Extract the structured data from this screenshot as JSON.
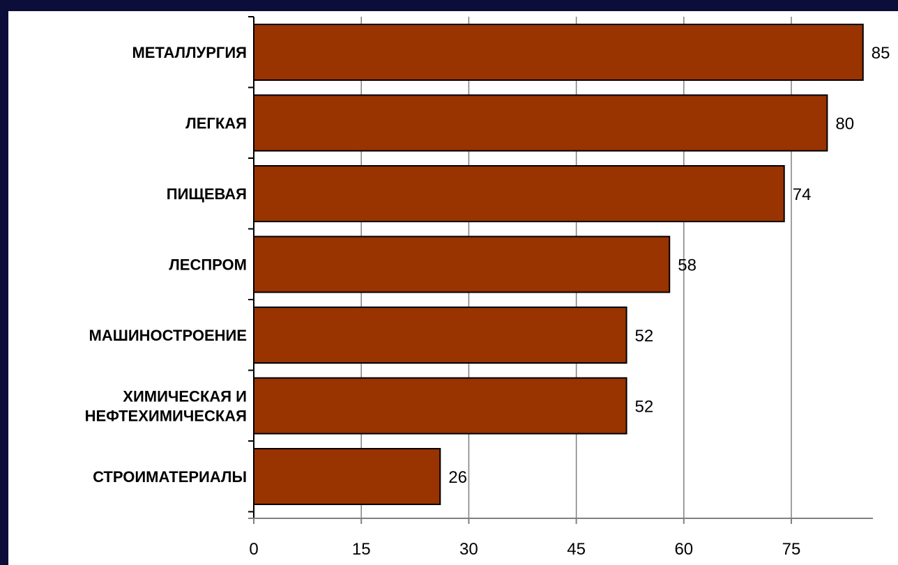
{
  "chart_data": {
    "type": "bar",
    "orientation": "horizontal",
    "categories": [
      [
        "МЕТАЛЛУРГИЯ"
      ],
      [
        "ЛЕГКАЯ"
      ],
      [
        "ПИЩЕВАЯ"
      ],
      [
        "ЛЕСПРОМ"
      ],
      [
        "МАШИНОСТРОЕНИЕ"
      ],
      [
        "ХИМИЧЕСКАЯ И",
        "НЕФТЕХИМИЧЕСКАЯ"
      ],
      [
        "СТРОИМАТЕРИАЛЫ"
      ]
    ],
    "values": [
      85,
      80,
      74,
      58,
      52,
      52,
      26
    ],
    "data_labels": [
      "85",
      "80",
      "74",
      "58",
      "52",
      "52",
      "26"
    ],
    "x_ticks": [
      0,
      15,
      30,
      45,
      60,
      75
    ],
    "xlim": [
      0,
      90
    ],
    "grid": "vertical",
    "legend": "none",
    "colors": {
      "bar": "#993300",
      "bar_border": "#000000",
      "background_frame": "#0d0d3a",
      "plot_background": "#ffffff",
      "grid": "#808080"
    }
  }
}
